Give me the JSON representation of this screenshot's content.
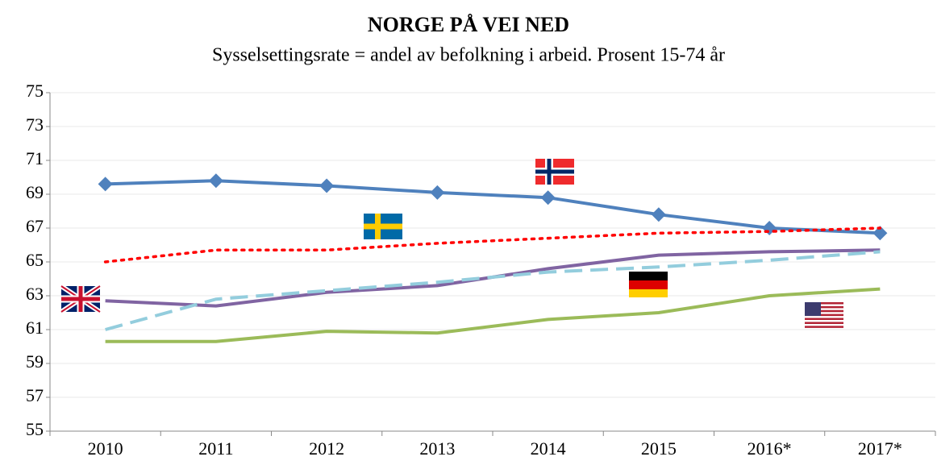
{
  "chart_data": {
    "type": "line",
    "title": "NORGE PÅ VEI NED",
    "subtitle": "Sysselsettingsrate = andel av befolkning i arbeid. Prosent 15-74 år",
    "categories": [
      "2010",
      "2011",
      "2012",
      "2013",
      "2014",
      "2015",
      "2016*",
      "2017*"
    ],
    "series": [
      {
        "color": "#4f81bd",
        "dash": "solid",
        "marker": "diamond",
        "values": [
          69.6,
          69.8,
          69.5,
          69.1,
          68.8,
          67.8,
          67.0,
          66.7
        ]
      },
      {
        "color": "#ff0000",
        "dash": "dotted",
        "marker": "none",
        "values": [
          65.0,
          65.7,
          65.7,
          66.1,
          66.4,
          66.7,
          66.8,
          67.0
        ]
      },
      {
        "color": "#8064a2",
        "dash": "solid",
        "marker": "none",
        "values": [
          62.7,
          62.4,
          63.2,
          63.6,
          64.6,
          65.4,
          65.6,
          65.7
        ]
      },
      {
        "color": "#93cddd",
        "dash": "dashed",
        "marker": "none",
        "values": [
          61.0,
          62.8,
          63.3,
          63.8,
          64.4,
          64.7,
          65.1,
          65.6
        ]
      },
      {
        "color": "#9bbb59",
        "dash": "solid",
        "marker": "none",
        "values": [
          60.3,
          60.3,
          60.9,
          60.8,
          61.6,
          62.0,
          63.0,
          63.4
        ]
      }
    ],
    "ylim": [
      55,
      75
    ],
    "yticks": [
      55,
      57,
      59,
      61,
      63,
      65,
      67,
      69,
      71,
      73,
      75
    ],
    "grid": true
  }
}
